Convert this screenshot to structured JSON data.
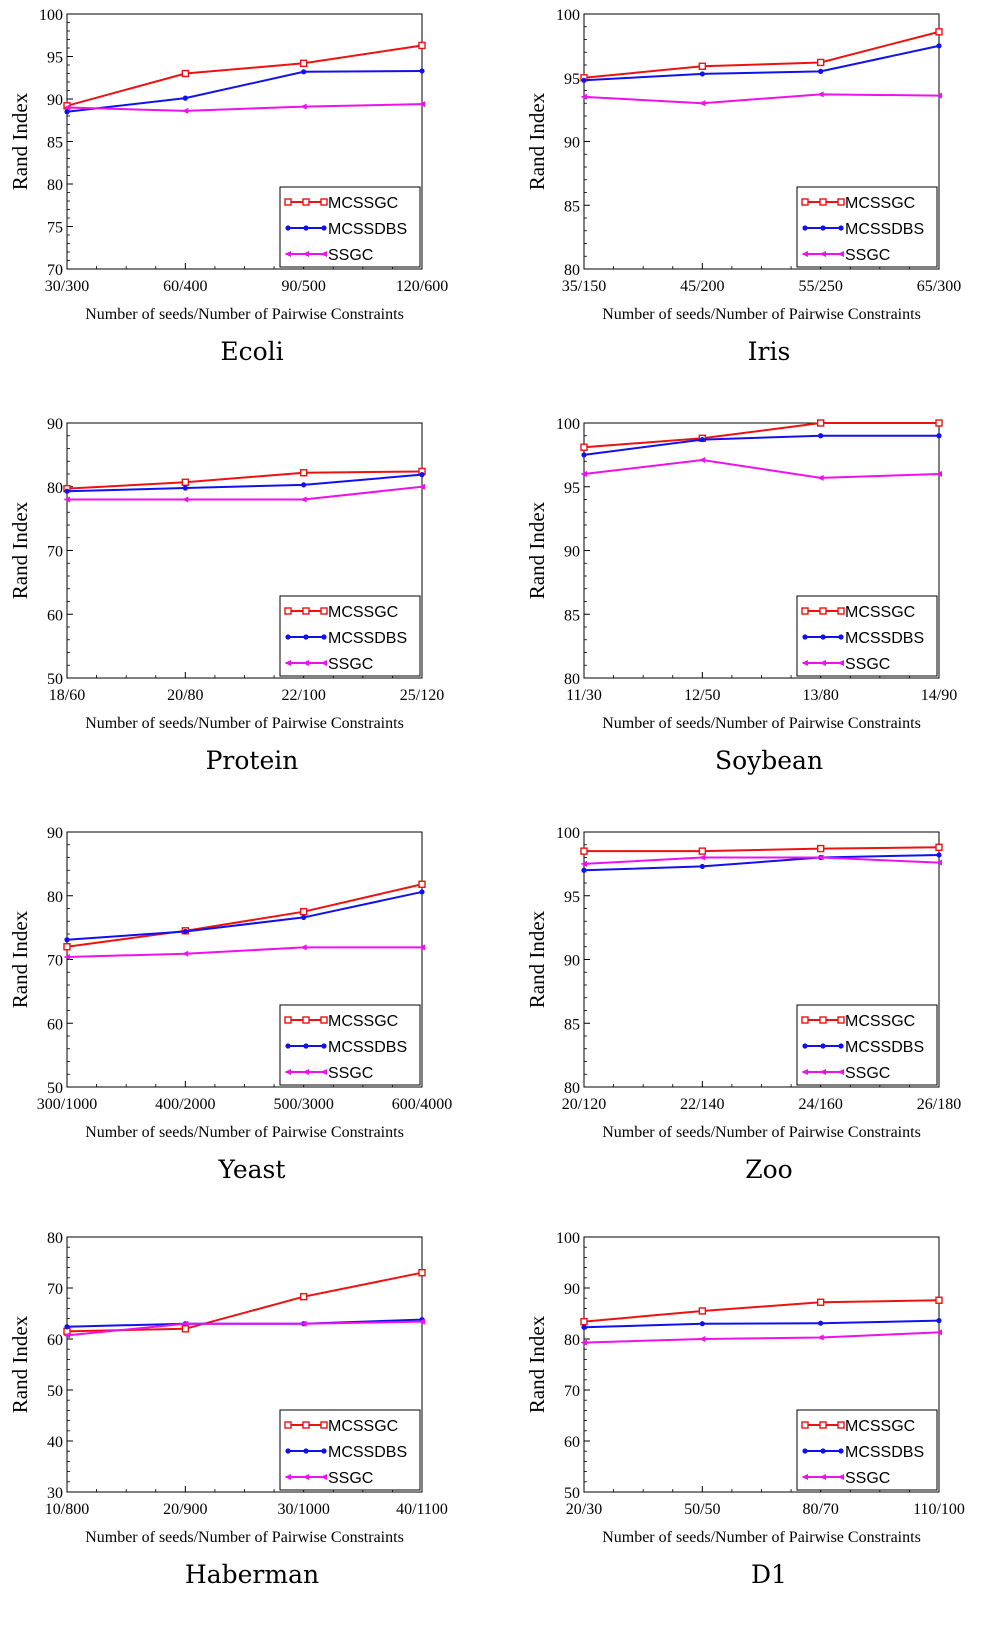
{
  "colors": {
    "MCSSGC": "#ee1111",
    "MCSSDBS": "#1111ee",
    "SSGC": "#ee11ee"
  },
  "legend": [
    "MCSSGC",
    "MCSSDBS",
    "SSGC"
  ],
  "chart_data": [
    {
      "type": "line",
      "caption": "Ecoli",
      "xlabel": "Number of seeds/Number of Pairwise Constraints",
      "ylabel": "Rand Index",
      "categories": [
        "30/300",
        "60/400",
        "90/500",
        "120/600"
      ],
      "ylim": [
        70,
        100
      ],
      "yticks": [
        70,
        75,
        80,
        85,
        90,
        95,
        100
      ],
      "series": [
        {
          "name": "MCSSGC",
          "values": [
            89.2,
            93.0,
            94.2,
            96.3
          ]
        },
        {
          "name": "MCSSDBS",
          "values": [
            88.5,
            90.1,
            93.2,
            93.3
          ]
        },
        {
          "name": "SSGC",
          "values": [
            89.0,
            88.6,
            89.1,
            89.4
          ]
        }
      ]
    },
    {
      "type": "line",
      "caption": "Iris",
      "xlabel": "Number of seeds/Number of Pairwise Constraints",
      "ylabel": "Rand Index",
      "categories": [
        "35/150",
        "45/200",
        "55/250",
        "65/300"
      ],
      "ylim": [
        80,
        100
      ],
      "yticks": [
        80,
        85,
        90,
        95,
        100
      ],
      "series": [
        {
          "name": "MCSSGC",
          "values": [
            95.0,
            95.9,
            96.2,
            98.6
          ]
        },
        {
          "name": "MCSSDBS",
          "values": [
            94.8,
            95.3,
            95.5,
            97.5
          ]
        },
        {
          "name": "SSGC",
          "values": [
            93.5,
            93.0,
            93.7,
            93.6
          ]
        }
      ]
    },
    {
      "type": "line",
      "caption": "Protein",
      "xlabel": "Number of seeds/Number of Pairwise Constraints",
      "ylabel": "Rand Index",
      "categories": [
        "18/60",
        "20/80",
        "22/100",
        "25/120"
      ],
      "ylim": [
        50,
        90
      ],
      "yticks": [
        50,
        60,
        70,
        80,
        90
      ],
      "series": [
        {
          "name": "MCSSGC",
          "values": [
            79.7,
            80.7,
            82.2,
            82.4
          ]
        },
        {
          "name": "MCSSDBS",
          "values": [
            79.3,
            79.8,
            80.3,
            81.9
          ]
        },
        {
          "name": "SSGC",
          "values": [
            78.0,
            78.0,
            78.0,
            80.0
          ]
        }
      ]
    },
    {
      "type": "line",
      "caption": "Soybean",
      "xlabel": "Number of seeds/Number of Pairwise Constraints",
      "ylabel": "Rand Index",
      "categories": [
        "11/30",
        "12/50",
        "13/80",
        "14/90"
      ],
      "ylim": [
        80,
        100
      ],
      "yticks": [
        80,
        85,
        90,
        95,
        100
      ],
      "series": [
        {
          "name": "MCSSGC",
          "values": [
            98.1,
            98.8,
            100.0,
            100.0
          ]
        },
        {
          "name": "MCSSDBS",
          "values": [
            97.5,
            98.7,
            99.0,
            99.0
          ]
        },
        {
          "name": "SSGC",
          "values": [
            96.0,
            97.1,
            95.7,
            96.0
          ]
        }
      ]
    },
    {
      "type": "line",
      "caption": "Yeast",
      "xlabel": "Number of seeds/Number of Pairwise Constraints",
      "ylabel": "Rand Index",
      "categories": [
        "300/1000",
        "400/2000",
        "500/3000",
        "600/4000"
      ],
      "ylim": [
        50,
        90
      ],
      "yticks": [
        50,
        60,
        70,
        80,
        90
      ],
      "series": [
        {
          "name": "MCSSGC",
          "values": [
            72.0,
            74.5,
            77.5,
            81.8
          ]
        },
        {
          "name": "MCSSDBS",
          "values": [
            73.1,
            74.4,
            76.6,
            80.6
          ]
        },
        {
          "name": "SSGC",
          "values": [
            70.4,
            70.9,
            71.9,
            71.9
          ]
        }
      ]
    },
    {
      "type": "line",
      "caption": "Zoo",
      "xlabel": "Number of seeds/Number of Pairwise Constraints",
      "ylabel": "Rand Index",
      "categories": [
        "20/120",
        "22/140",
        "24/160",
        "26/180"
      ],
      "ylim": [
        80,
        100
      ],
      "yticks": [
        80,
        85,
        90,
        95,
        100
      ],
      "series": [
        {
          "name": "MCSSGC",
          "values": [
            98.5,
            98.5,
            98.7,
            98.8
          ]
        },
        {
          "name": "MCSSDBS",
          "values": [
            97.0,
            97.3,
            98.0,
            98.2
          ]
        },
        {
          "name": "SSGC",
          "values": [
            97.5,
            98.0,
            98.0,
            97.6
          ]
        }
      ]
    },
    {
      "type": "line",
      "caption": "Haberman",
      "xlabel": "Number of seeds/Number of Pairwise Constraints",
      "ylabel": "Rand Index",
      "categories": [
        "10/800",
        "20/900",
        "30/1000",
        "40/1100"
      ],
      "ylim": [
        30,
        80
      ],
      "yticks": [
        30,
        40,
        50,
        60,
        70,
        80
      ],
      "series": [
        {
          "name": "MCSSGC",
          "values": [
            61.5,
            62.0,
            68.3,
            73.0
          ]
        },
        {
          "name": "MCSSDBS",
          "values": [
            62.4,
            63.0,
            63.0,
            63.8
          ]
        },
        {
          "name": "SSGC",
          "values": [
            60.7,
            63.0,
            63.0,
            63.4
          ]
        }
      ]
    },
    {
      "type": "line",
      "caption": "D1",
      "xlabel": "Number of seeds/Number of Pairwise Constraints",
      "ylabel": "Rand Index",
      "categories": [
        "20/30",
        "50/50",
        "80/70",
        "110/100"
      ],
      "ylim": [
        50,
        100
      ],
      "yticks": [
        50,
        60,
        70,
        80,
        90,
        100
      ],
      "series": [
        {
          "name": "MCSSGC",
          "values": [
            83.4,
            85.5,
            87.2,
            87.6
          ]
        },
        {
          "name": "MCSSDBS",
          "values": [
            82.3,
            83.0,
            83.1,
            83.6
          ]
        },
        {
          "name": "SSGC",
          "values": [
            79.3,
            80.0,
            80.3,
            81.3
          ]
        }
      ]
    }
  ]
}
